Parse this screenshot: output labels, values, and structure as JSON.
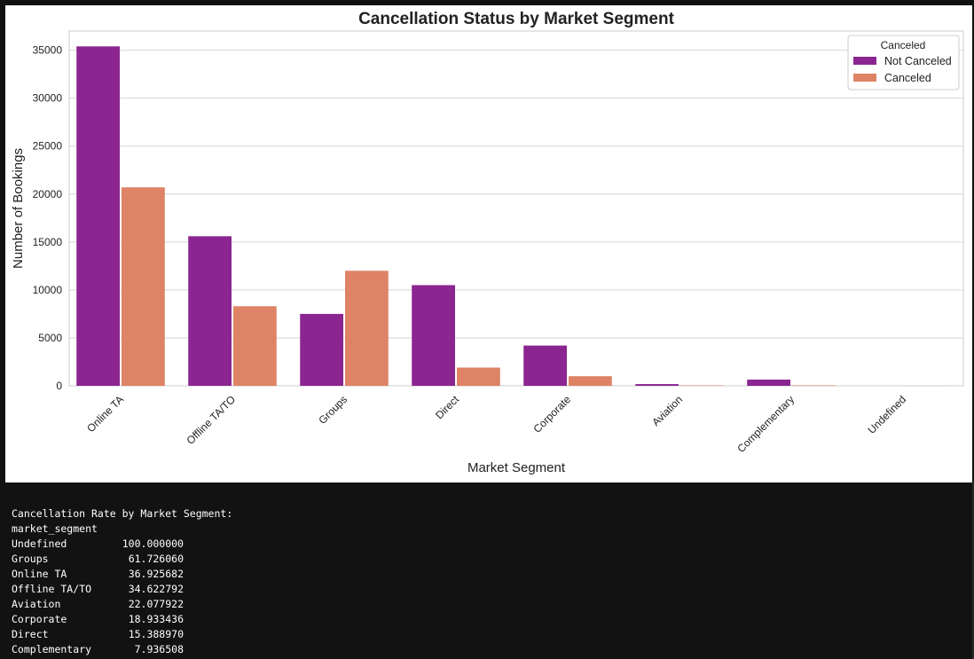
{
  "chart_data": {
    "type": "bar",
    "title": "Cancellation Status by Market Segment",
    "xlabel": "Market Segment",
    "ylabel": "Number of Bookings",
    "categories": [
      "Online TA",
      "Offline TA/TO",
      "Groups",
      "Direct",
      "Corporate",
      "Aviation",
      "Complementary",
      "Undefined"
    ],
    "series": [
      {
        "name": "Not Canceled",
        "color": "#8B2590",
        "values": [
          35400,
          15600,
          7500,
          10500,
          4200,
          180,
          650,
          0
        ]
      },
      {
        "name": "Canceled",
        "color": "#DE8365",
        "values": [
          20700,
          8300,
          12000,
          1900,
          1000,
          50,
          55,
          2
        ]
      }
    ],
    "yticks": [
      0,
      5000,
      10000,
      15000,
      20000,
      25000,
      30000,
      35000
    ],
    "ylim": [
      0,
      37000
    ],
    "grid": true,
    "legend": {
      "title": "Canceled",
      "placement": "top-right"
    }
  },
  "console": {
    "heading": "Cancellation Rate by Market Segment:",
    "index_name": "market_segment",
    "rows": [
      {
        "label": "Undefined",
        "value": "100.000000"
      },
      {
        "label": "Groups",
        "value": "61.726060"
      },
      {
        "label": "Online TA",
        "value": "36.925682"
      },
      {
        "label": "Offline TA/TO",
        "value": "34.622792"
      },
      {
        "label": "Aviation",
        "value": "22.077922"
      },
      {
        "label": "Corporate",
        "value": "18.933436"
      },
      {
        "label": "Direct",
        "value": "15.388970"
      },
      {
        "label": "Complementary",
        "value": "7.936508"
      }
    ]
  }
}
